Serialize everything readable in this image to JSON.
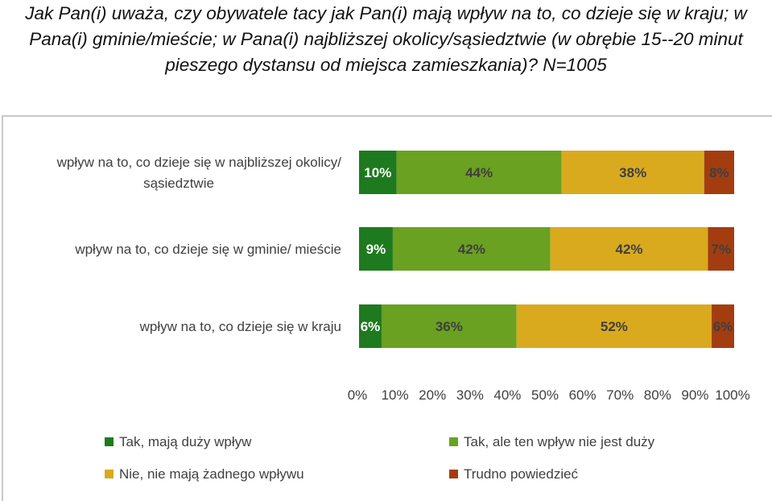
{
  "question": "Jak Pan(i) uważa, czy obywatele tacy jak Pan(i) mają wpływ na to, co dzieje się w kraju; w Pana(i) gminie/mieście; w Pana(i) najbliższej okolicy/sąsiedztwie (w obrębie 15--20 minut pieszego dystansu od miejsca zamieszkania)? N=1005",
  "chart_data": {
    "type": "bar",
    "orientation": "horizontal",
    "stacked": "percent",
    "categories": [
      [
        "wpływ na to, co dzieje się w najbliższej okolicy/",
        "sąsiedztwie"
      ],
      [
        "wpływ na to, co dzieje się w gminie/ mieście"
      ],
      [
        "wpływ na to, co dzieje się w kraju"
      ]
    ],
    "series": [
      {
        "name": "Tak, mają duży wpływ",
        "color": "#1e7a1e",
        "values": [
          10,
          9,
          6
        ],
        "labels": [
          "10%",
          "9%",
          "6%"
        ]
      },
      {
        "name": "Tak, ale ten wpływ nie jest duży",
        "color": "#6aa121",
        "values": [
          44,
          42,
          36
        ],
        "labels": [
          "44%",
          "42%",
          "36%"
        ]
      },
      {
        "name": "Nie, nie mają żadnego wpływu",
        "color": "#d9aa1e",
        "values": [
          38,
          42,
          52
        ],
        "labels": [
          "38%",
          "42%",
          "52%"
        ]
      },
      {
        "name": "Trudno powiedzieć",
        "color": "#a33d10",
        "values": [
          8,
          7,
          6
        ],
        "labels": [
          "8%",
          "7%",
          "6%"
        ]
      }
    ],
    "xticks": [
      "0%",
      "10%",
      "20%",
      "30%",
      "40%",
      "50%",
      "60%",
      "70%",
      "80%",
      "90%",
      "100%"
    ],
    "xlim": [
      0,
      100
    ],
    "grid": false,
    "legend_position": "bottom"
  }
}
